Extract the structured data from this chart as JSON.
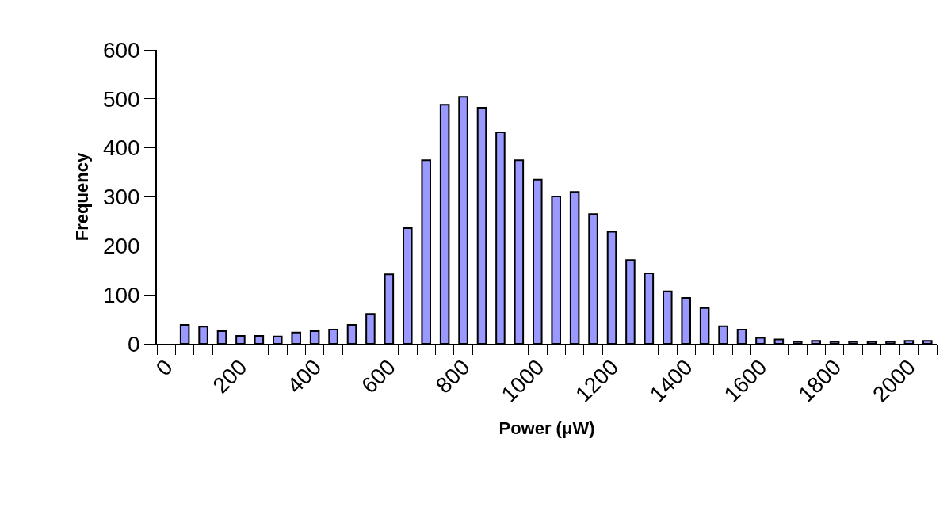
{
  "chart_data": {
    "type": "bar",
    "xlabel": "Power (μW)",
    "ylabel": "Frequency",
    "categories": [
      "0",
      null,
      null,
      null,
      "200",
      null,
      null,
      null,
      "400",
      null,
      null,
      null,
      "600",
      null,
      null,
      null,
      "800",
      null,
      null,
      null,
      "1000",
      null,
      null,
      null,
      "1200",
      null,
      null,
      null,
      "1400",
      null,
      null,
      null,
      "1600",
      null,
      null,
      null,
      "1800",
      null,
      null,
      null,
      "2000",
      null
    ],
    "values": [
      null,
      39,
      35,
      26,
      16,
      16,
      15,
      23,
      26,
      29,
      39,
      61,
      142,
      236,
      375,
      488,
      504,
      482,
      432,
      375,
      335,
      301,
      310,
      265,
      229,
      171,
      144,
      107,
      94,
      73,
      36,
      29,
      12,
      9,
      4,
      6,
      4,
      4,
      4,
      4,
      6,
      6
    ],
    "color": "#9999ff",
    "ylim": [
      0,
      600
    ],
    "yticks": [
      0,
      100,
      200,
      300,
      400,
      500,
      600
    ]
  }
}
